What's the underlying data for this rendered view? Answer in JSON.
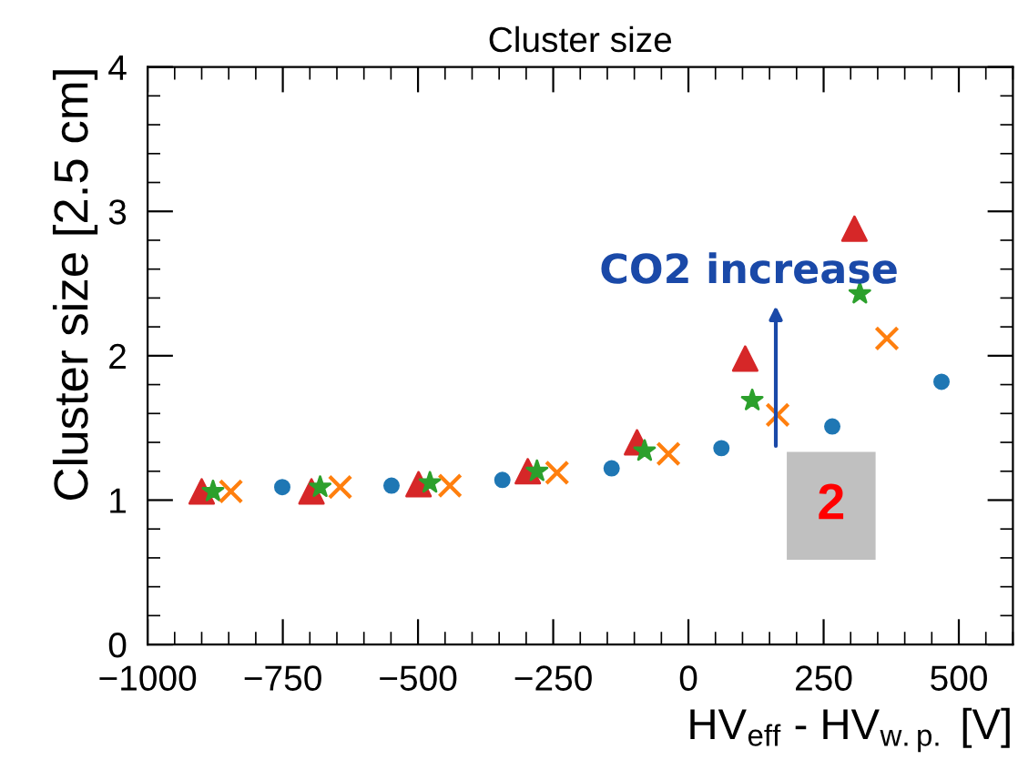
{
  "chart_data": {
    "type": "scatter",
    "title": "Cluster size",
    "xlabel": "HV$_{eff}$ - HV$_{w.p.}$ [V]",
    "ylabel": "Cluster size [2.5 cm]",
    "xlim": [
      -1000,
      600
    ],
    "xticks": [
      {
        "value": -1000,
        "label": "−1000"
      },
      {
        "value": -750,
        "label": "−750"
      },
      {
        "value": -500,
        "label": "−500"
      },
      {
        "value": -250,
        "label": "−250"
      },
      0,
      250,
      500
    ],
    "ylim": [
      0,
      4
    ],
    "yticks": [
      0,
      1,
      2,
      3,
      4
    ],
    "grid": false,
    "legend": false,
    "series": [
      {
        "color": "#1f77b4",
        "marker": "circle",
        "x": [
          -751,
          -549,
          -344,
          -142,
          61,
          266,
          468
        ],
        "values": [
          1.09,
          1.1,
          1.14,
          1.22,
          1.36,
          1.51,
          1.82
        ]
      },
      {
        "color": "#d62728",
        "marker": "triangle",
        "x": [
          -900,
          -697,
          -499,
          -297,
          -95,
          105,
          307
        ],
        "values": [
          1.06,
          1.06,
          1.11,
          1.2,
          1.4,
          1.98,
          2.88
        ]
      },
      {
        "color": "#2ca02c",
        "marker": "star",
        "x": [
          -879,
          -681,
          -478,
          -280,
          -81,
          118,
          317
        ],
        "values": [
          1.06,
          1.09,
          1.12,
          1.2,
          1.34,
          1.69,
          2.43
        ]
      },
      {
        "color": "#ff7f0e",
        "marker": "cross",
        "x": [
          -846,
          -644,
          -441,
          -243,
          -37,
          165,
          367
        ],
        "values": [
          1.06,
          1.09,
          1.1,
          1.19,
          1.32,
          1.59,
          2.12
        ]
      }
    ],
    "annotations": [
      "CO2 increase",
      "2"
    ]
  }
}
